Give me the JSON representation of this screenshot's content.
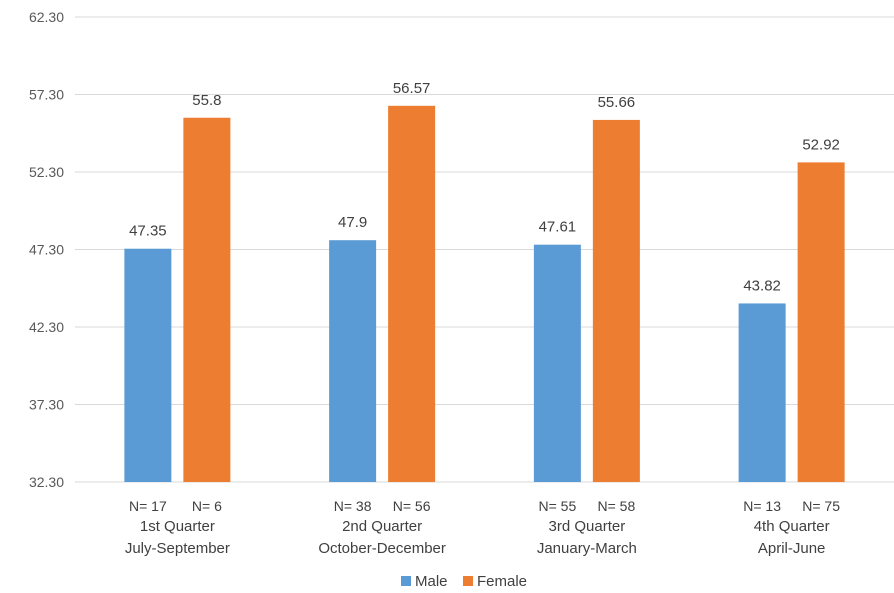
{
  "chart_data": {
    "type": "bar",
    "ylim": [
      32.3,
      62.3
    ],
    "yticks": [
      "62.30",
      "57.30",
      "52.30",
      "47.30",
      "42.30",
      "37.30",
      "32.30"
    ],
    "grid": true,
    "legend_position": "bottom",
    "categories": [
      {
        "line1": "1st Quarter",
        "line2": "July-September"
      },
      {
        "line1": "2nd Quarter",
        "line2": "October-December"
      },
      {
        "line1": "3rd Quarter",
        "line2": "January-March"
      },
      {
        "line1": "4th Quarter",
        "line2": "April-June"
      }
    ],
    "series": [
      {
        "name": "Male",
        "color": "#5b9bd5",
        "values": [
          47.35,
          47.9,
          47.61,
          43.82
        ],
        "value_labels": [
          "47.35",
          "47.9",
          "47.61",
          "43.82"
        ],
        "n_labels": [
          "N= 17",
          "N= 38",
          "N= 55",
          "N= 13"
        ]
      },
      {
        "name": "Female",
        "color": "#ed7d31",
        "values": [
          55.8,
          56.57,
          55.66,
          52.92
        ],
        "value_labels": [
          "55.8",
          "56.57",
          "55.66",
          "52.92"
        ],
        "n_labels": [
          "N= 6",
          "N= 56",
          "N= 58",
          "N= 75"
        ]
      }
    ]
  }
}
